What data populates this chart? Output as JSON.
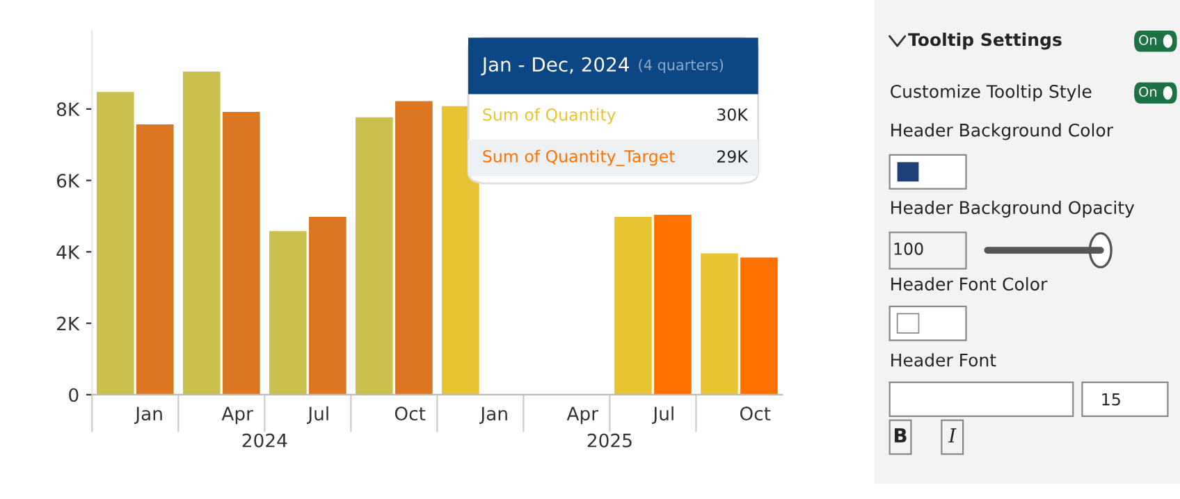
{
  "chart_data": [
    {
      "type": "bar",
      "categories": [
        "Jan",
        "Apr",
        "Jul",
        "Oct",
        "Jan",
        "Apr",
        "Jul",
        "Oct"
      ],
      "series": [
        {
          "name": "Sum of Quantity",
          "color": "#e8c435",
          "colors": [
            "#cbbf4e",
            "#cbbf4e",
            "#cbbf4e",
            "#cbbf4e",
            "#e8c435",
            "#e8c435",
            "#e8c435",
            "#e8c435"
          ],
          "values": [
            8480,
            9050,
            4580,
            7770,
            8080,
            null,
            4980,
            3960
          ]
        },
        {
          "name": "Sum of Quantity_Target",
          "color": "#ff7200",
          "colors": [
            "#dd7621",
            "#dd7621",
            "#dd7621",
            "#dd7621",
            "#ff7200",
            "#ff7200",
            "#ff7200",
            "#ff7200"
          ],
          "values": [
            7570,
            7920,
            4980,
            8220,
            null,
            null,
            5040,
            3840
          ]
        }
      ],
      "ylim": [
        0,
        10200
      ],
      "yticks": [
        0,
        {
          "value": 2000,
          "label": "2K"
        },
        {
          "value": 4000,
          "label": "4K"
        },
        {
          "value": 6000,
          "label": "6K"
        },
        {
          "value": 8000,
          "label": "8K"
        }
      ],
      "grid": false,
      "legend": false,
      "annotations": [
        "2024",
        "2025",
        "Jan - Dec, 2024",
        "(4 quarters)",
        "30K",
        "29K"
      ]
    },
    {
      "type": "other",
      "annotations": [
        "Tooltip Settings",
        "On",
        "Customize Tooltip Style",
        "On",
        "Header Background Color",
        "Header Background Opacity",
        "100",
        "Header Font Color",
        "Header Font",
        "15",
        "B",
        "I"
      ]
    }
  ]
}
